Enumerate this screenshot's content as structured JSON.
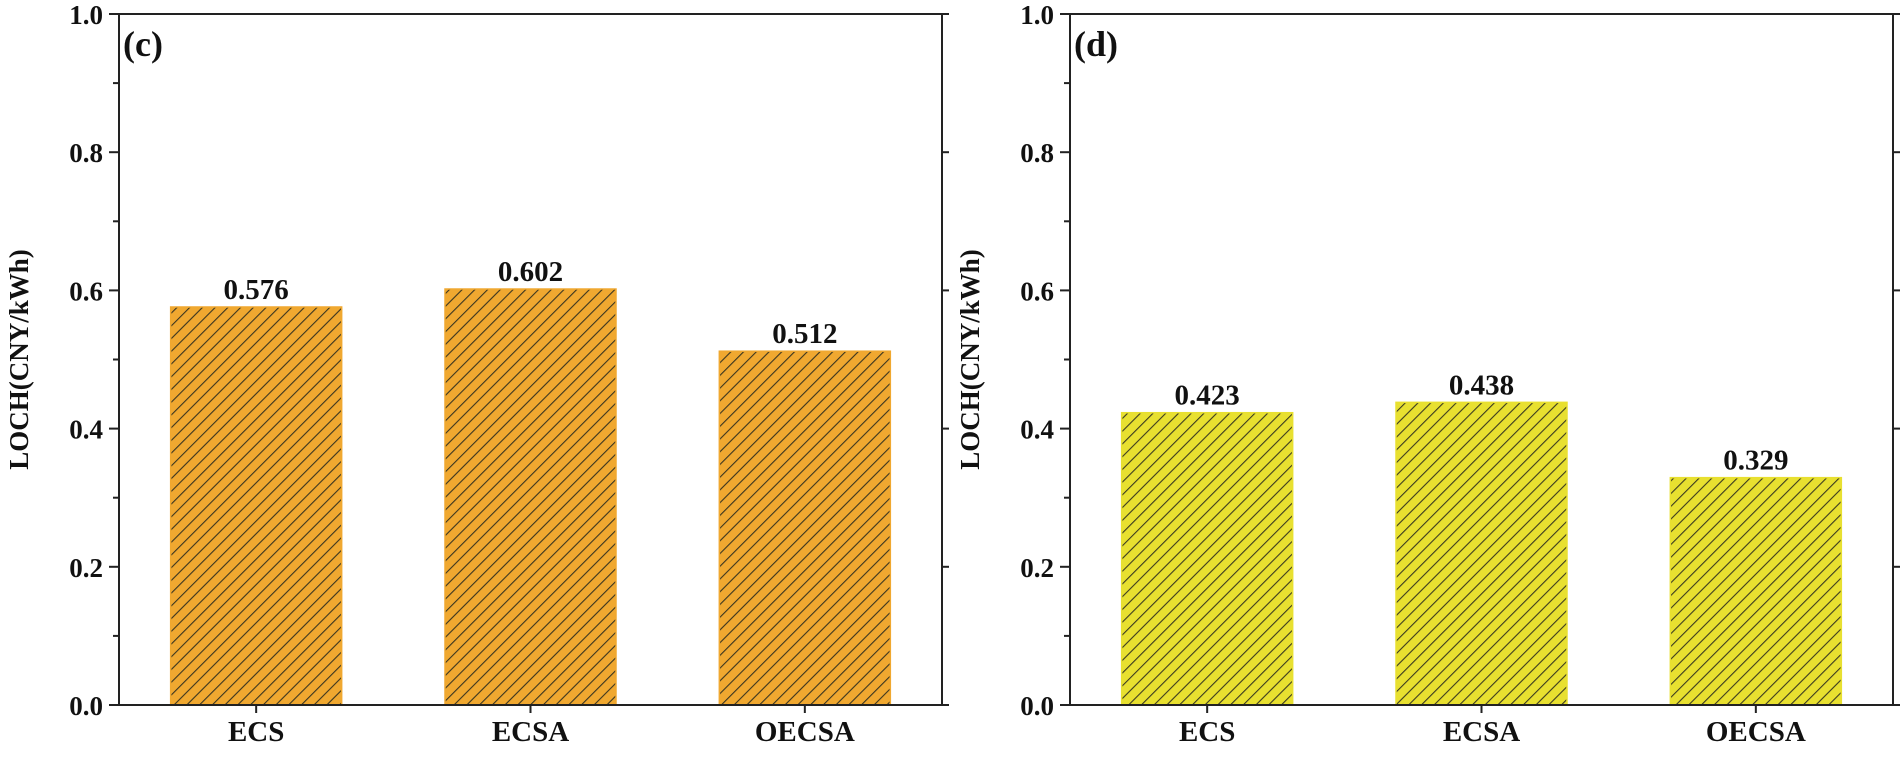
{
  "chart_data": [
    {
      "type": "bar",
      "panel_label": "(c)",
      "title": "",
      "xlabel": "",
      "ylabel": "LOCH(CNY/kWh)",
      "ylim": [
        0.0,
        1.0
      ],
      "yticks": [
        "0.0",
        "0.2",
        "0.4",
        "0.6",
        "0.8",
        "1.0"
      ],
      "categories": [
        "ECS",
        "ECSA",
        "OECSA"
      ],
      "values": [
        0.576,
        0.602,
        0.512
      ],
      "value_labels": [
        "0.576",
        "0.602",
        "0.512"
      ],
      "bar_color": "#F0A830",
      "hatch_color": "#3a3520",
      "grid": false
    },
    {
      "type": "bar",
      "panel_label": "(d)",
      "title": "",
      "xlabel": "",
      "ylabel": "LOCH(CNY/kWh)",
      "ylim": [
        0.0,
        1.0
      ],
      "yticks": [
        "0.0",
        "0.2",
        "0.4",
        "0.6",
        "0.8",
        "1.0"
      ],
      "categories": [
        "ECS",
        "ECSA",
        "OECSA"
      ],
      "values": [
        0.423,
        0.438,
        0.329
      ],
      "value_labels": [
        "0.423",
        "0.438",
        "0.329"
      ],
      "bar_color": "#E8E030",
      "hatch_color": "#3a3a20",
      "grid": false
    }
  ]
}
